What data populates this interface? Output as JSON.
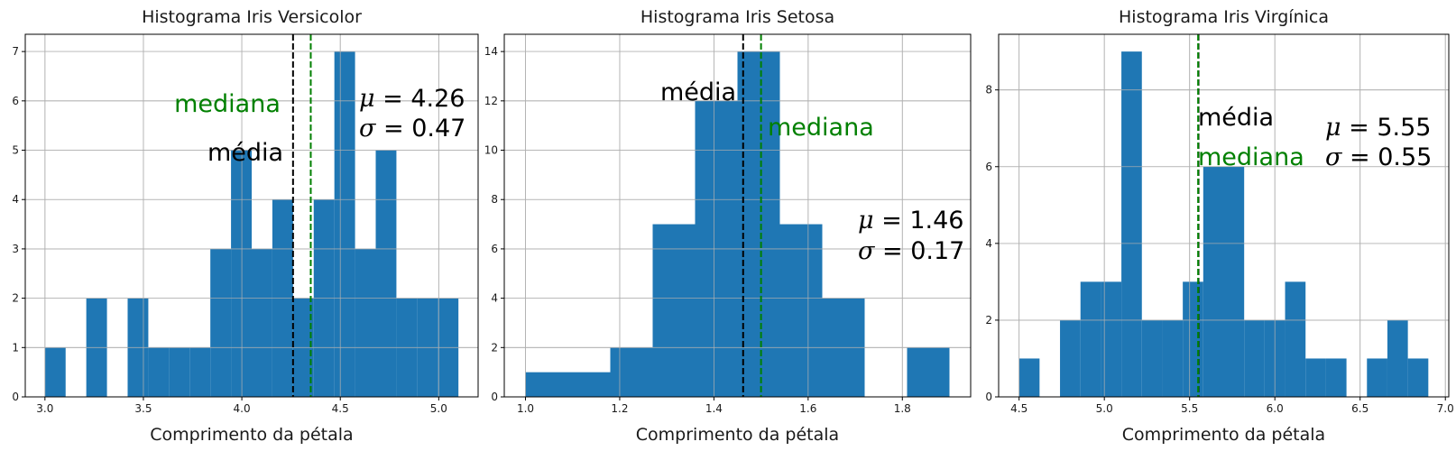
{
  "chart_data": [
    {
      "type": "bar",
      "title": "Histograma Iris Versicolor",
      "xlabel": "Comprimento da pétala",
      "ylabel": "",
      "xlim": [
        2.9,
        5.2
      ],
      "ylim": [
        0,
        7.35
      ],
      "xticks": [
        "3.0",
        "3.5",
        "4.0",
        "4.5",
        "5.0"
      ],
      "xtick_values": [
        3.0,
        3.5,
        4.0,
        4.5,
        5.0
      ],
      "yticks": [
        "0",
        "1",
        "2",
        "3",
        "4",
        "5",
        "6",
        "7"
      ],
      "ytick_values": [
        0,
        1,
        2,
        3,
        4,
        5,
        6,
        7
      ],
      "grid": true,
      "bar_color": "#1f77b4",
      "bins": [
        {
          "x0": 3.0,
          "x1": 3.105,
          "count": 1
        },
        {
          "x0": 3.105,
          "x1": 3.21,
          "count": 0
        },
        {
          "x0": 3.21,
          "x1": 3.315,
          "count": 2
        },
        {
          "x0": 3.315,
          "x1": 3.42,
          "count": 0
        },
        {
          "x0": 3.42,
          "x1": 3.525,
          "count": 2
        },
        {
          "x0": 3.525,
          "x1": 3.63,
          "count": 1
        },
        {
          "x0": 3.63,
          "x1": 3.735,
          "count": 1
        },
        {
          "x0": 3.735,
          "x1": 3.84,
          "count": 1
        },
        {
          "x0": 3.84,
          "x1": 3.945,
          "count": 3
        },
        {
          "x0": 3.945,
          "x1": 4.05,
          "count": 5
        },
        {
          "x0": 4.05,
          "x1": 4.155,
          "count": 3
        },
        {
          "x0": 4.155,
          "x1": 4.26,
          "count": 4
        },
        {
          "x0": 4.26,
          "x1": 4.365,
          "count": 2
        },
        {
          "x0": 4.365,
          "x1": 4.47,
          "count": 4
        },
        {
          "x0": 4.47,
          "x1": 4.575,
          "count": 7
        },
        {
          "x0": 4.575,
          "x1": 4.68,
          "count": 3
        },
        {
          "x0": 4.68,
          "x1": 4.785,
          "count": 5
        },
        {
          "x0": 4.785,
          "x1": 4.89,
          "count": 2
        },
        {
          "x0": 4.89,
          "x1": 4.995,
          "count": 2
        },
        {
          "x0": 4.995,
          "x1": 5.1,
          "count": 2
        }
      ],
      "mean_line": {
        "value": 4.26,
        "color": "#000000",
        "label": "média"
      },
      "median_line": {
        "value": 4.35,
        "color": "#008000",
        "label": "mediana"
      },
      "stats": {
        "mu": "4.26",
        "sigma": "0.47"
      }
    },
    {
      "type": "bar",
      "title": "Histograma Iris Setosa",
      "xlabel": "Comprimento da pétala",
      "ylabel": "",
      "xlim": [
        0.955,
        1.945
      ],
      "ylim": [
        0,
        14.7
      ],
      "xticks": [
        "1.0",
        "1.2",
        "1.4",
        "1.6",
        "1.8"
      ],
      "xtick_values": [
        1.0,
        1.2,
        1.4,
        1.6,
        1.8
      ],
      "yticks": [
        "0",
        "2",
        "4",
        "6",
        "8",
        "10",
        "12",
        "14"
      ],
      "ytick_values": [
        0,
        2,
        4,
        6,
        8,
        10,
        12,
        14
      ],
      "grid": true,
      "bar_color": "#1f77b4",
      "bins": [
        {
          "x0": 1.0,
          "x1": 1.09,
          "count": 1
        },
        {
          "x0": 1.09,
          "x1": 1.18,
          "count": 1
        },
        {
          "x0": 1.18,
          "x1": 1.27,
          "count": 2
        },
        {
          "x0": 1.27,
          "x1": 1.36,
          "count": 7
        },
        {
          "x0": 1.36,
          "x1": 1.45,
          "count": 12
        },
        {
          "x0": 1.45,
          "x1": 1.54,
          "count": 14
        },
        {
          "x0": 1.54,
          "x1": 1.63,
          "count": 7
        },
        {
          "x0": 1.63,
          "x1": 1.72,
          "count": 4
        },
        {
          "x0": 1.72,
          "x1": 1.81,
          "count": 0
        },
        {
          "x0": 1.81,
          "x1": 1.9,
          "count": 2
        }
      ],
      "mean_line": {
        "value": 1.462,
        "color": "#000000",
        "label": "média"
      },
      "median_line": {
        "value": 1.5,
        "color": "#008000",
        "label": "mediana"
      },
      "stats": {
        "mu": "1.46",
        "sigma": "0.17"
      }
    },
    {
      "type": "bar",
      "title": "Histograma Iris Virgínica",
      "xlabel": "Comprimento da pétala",
      "ylabel": "",
      "xlim": [
        4.38,
        7.02
      ],
      "ylim": [
        0,
        9.45
      ],
      "xticks": [
        "4.5",
        "5.0",
        "5.5",
        "6.0",
        "6.5",
        "7.0"
      ],
      "xtick_values": [
        4.5,
        5.0,
        5.5,
        6.0,
        6.5,
        7.0
      ],
      "yticks": [
        "0",
        "2",
        "4",
        "6",
        "8"
      ],
      "ytick_values": [
        0,
        2,
        4,
        6,
        8
      ],
      "grid": true,
      "bar_color": "#1f77b4",
      "bins": [
        {
          "x0": 4.5,
          "x1": 4.62,
          "count": 1
        },
        {
          "x0": 4.62,
          "x1": 4.74,
          "count": 0
        },
        {
          "x0": 4.74,
          "x1": 4.86,
          "count": 2
        },
        {
          "x0": 4.86,
          "x1": 4.98,
          "count": 3
        },
        {
          "x0": 4.98,
          "x1": 5.1,
          "count": 3
        },
        {
          "x0": 5.1,
          "x1": 5.22,
          "count": 9
        },
        {
          "x0": 5.22,
          "x1": 5.34,
          "count": 2
        },
        {
          "x0": 5.34,
          "x1": 5.46,
          "count": 2
        },
        {
          "x0": 5.46,
          "x1": 5.58,
          "count": 3
        },
        {
          "x0": 5.58,
          "x1": 5.7,
          "count": 6
        },
        {
          "x0": 5.7,
          "x1": 5.82,
          "count": 6
        },
        {
          "x0": 5.82,
          "x1": 5.94,
          "count": 2
        },
        {
          "x0": 5.94,
          "x1": 6.06,
          "count": 2
        },
        {
          "x0": 6.06,
          "x1": 6.18,
          "count": 3
        },
        {
          "x0": 6.18,
          "x1": 6.3,
          "count": 1
        },
        {
          "x0": 6.3,
          "x1": 6.42,
          "count": 1
        },
        {
          "x0": 6.42,
          "x1": 6.54,
          "count": 0
        },
        {
          "x0": 6.54,
          "x1": 6.66,
          "count": 1
        },
        {
          "x0": 6.66,
          "x1": 6.78,
          "count": 2
        },
        {
          "x0": 6.78,
          "x1": 6.9,
          "count": 1
        }
      ],
      "mean_line": {
        "value": 5.552,
        "color": "#000000",
        "label": "média"
      },
      "median_line": {
        "value": 5.55,
        "color": "#008000",
        "label": "mediana"
      },
      "stats": {
        "mu": "5.55",
        "sigma": "0.55"
      }
    }
  ]
}
